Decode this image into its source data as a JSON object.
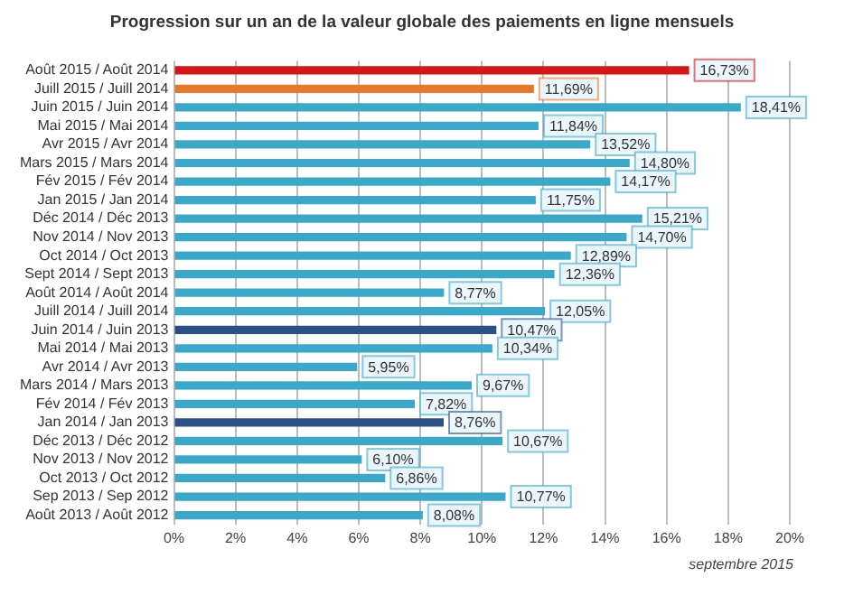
{
  "chart_data": {
    "type": "bar",
    "orientation": "horizontal",
    "title": "Progression sur un an de la valeur globale des paiements en ligne mensuels",
    "categories": [
      "Août 2015 / Août 2014",
      "Juill 2015 / Juill 2014",
      "Juin 2015 / Juin 2014",
      "Mai 2015 / Mai 2014",
      "Avr 2015 / Avr 2014",
      "Mars 2015 / Mars 2014",
      "Fév 2015 / Fév 2014",
      "Jan 2015 / Jan 2014",
      "Déc 2014 / Déc 2013",
      "Nov 2014 / Nov 2013",
      "Oct 2014 / Oct 2013",
      "Sept 2014 / Sept 2013",
      "Août 2014 / Août 2014",
      "Juill 2014 / Juill 2014",
      "Juin 2014 / Juin 2013",
      "Mai 2014 / Mai 2013",
      "Avr 2014 / Avr 2013",
      "Mars 2014 / Mars 2013",
      "Fév 2014 / Fév 2013",
      "Jan 2014 / Jan 2013",
      "Déc 2013 / Déc 2012",
      "Nov 2013 / Nov 2012",
      "Oct 2013 / Oct 2012",
      "Sep 2013 / Sep 2012",
      "Août 2013 / Août 2012"
    ],
    "values": [
      16.73,
      11.69,
      18.41,
      11.84,
      13.52,
      14.8,
      14.17,
      11.75,
      15.21,
      14.7,
      12.89,
      12.36,
      8.77,
      12.05,
      10.47,
      10.34,
      5.95,
      9.67,
      7.82,
      8.76,
      10.67,
      6.1,
      6.86,
      10.77,
      8.08
    ],
    "value_labels": [
      "16,73%",
      "11,69%",
      "18,41%",
      "11,84%",
      "13,52%",
      "14,80%",
      "14,17%",
      "11,75%",
      "15,21%",
      "14,70%",
      "12,89%",
      "12,36%",
      "8,77%",
      "12,05%",
      "10,47%",
      "10,34%",
      "5,95%",
      "9,67%",
      "7,82%",
      "8,76%",
      "10,67%",
      "6,10%",
      "6,86%",
      "10,77%",
      "8,08%"
    ],
    "colors": [
      "#d7141a",
      "#e8792a",
      "#3aa9c9",
      "#3aa9c9",
      "#3aa9c9",
      "#3aa9c9",
      "#3aa9c9",
      "#3aa9c9",
      "#3aa9c9",
      "#3aa9c9",
      "#3aa9c9",
      "#3aa9c9",
      "#3aa9c9",
      "#3aa9c9",
      "#2b5088",
      "#3aa9c9",
      "#3aa9c9",
      "#3aa9c9",
      "#3aa9c9",
      "#2b5088",
      "#3aa9c9",
      "#3aa9c9",
      "#3aa9c9",
      "#3aa9c9",
      "#3aa9c9"
    ],
    "xlim": [
      0,
      20
    ],
    "xticks": [
      {
        "value": 0,
        "label": "0%"
      },
      {
        "value": 2,
        "label": "2%"
      },
      {
        "value": 4,
        "label": "4%"
      },
      {
        "value": 6,
        "label": "6%"
      },
      {
        "value": 8,
        "label": "8%"
      },
      {
        "value": 10,
        "label": "10%"
      },
      {
        "value": 12,
        "label": "12%"
      },
      {
        "value": 14,
        "label": "14%"
      },
      {
        "value": 16,
        "label": "16%"
      },
      {
        "value": 18,
        "label": "18%"
      },
      {
        "value": 20,
        "label": "20%"
      }
    ],
    "grid": "x",
    "legend": false,
    "annotations": [
      "septembre 2015"
    ]
  }
}
